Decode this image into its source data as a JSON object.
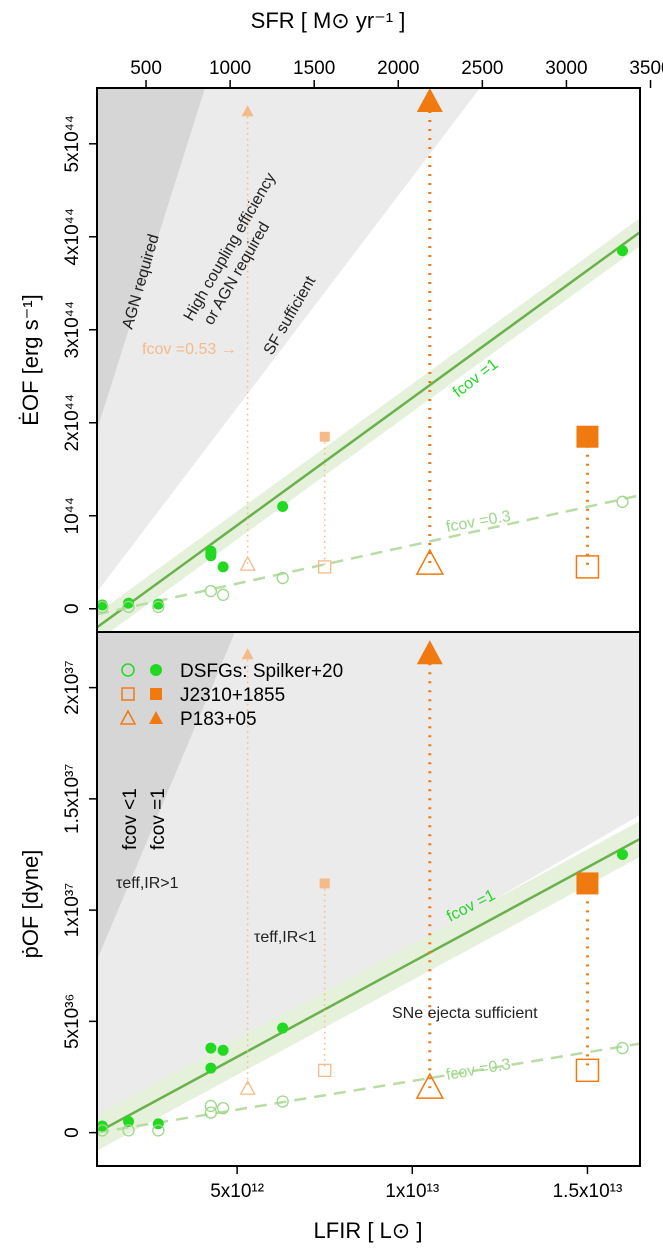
{
  "colors": {
    "green_fill": "#22d922",
    "green_line": "#6ab04c",
    "green_band": "#e6f1dc",
    "green_light": "#9bd88a",
    "orange": "#f07a10",
    "orange_light": "#f6b988",
    "region_dark": "#d6d6d6",
    "region_light": "#ebebeb"
  },
  "top_axis": {
    "label": "SFR [ M⊙ yr⁻¹ ]",
    "ticks": [
      "500",
      "1000",
      "1500",
      "2000",
      "2500",
      "3000",
      "3500"
    ],
    "tick_values": [
      500,
      1000,
      1500,
      2000,
      2500,
      3000,
      3500
    ]
  },
  "bottom_axis": {
    "label": "LFIR [ L⊙ ]",
    "ticks": [
      "5x10¹²",
      "1x10¹³",
      "1.5x10¹³"
    ],
    "tick_values": [
      5000000000000.0,
      10000000000000.0,
      15000000000000.0
    ]
  },
  "legend": {
    "rows": [
      "DSFGs: Spilker+20",
      "J2310+1855",
      "P183+05"
    ],
    "col_open": "fcov <1",
    "col_filled": "fcov =1"
  },
  "top_panel": {
    "ylabel": "ĖOF [erg s⁻¹]",
    "yticks": [
      "0",
      "10⁴⁴",
      "2x10⁴⁴",
      "3x10⁴⁴",
      "4x10⁴⁴",
      "5x10⁴⁴"
    ],
    "ann_agn": "AGN required",
    "ann_high1": "High coupling efficiency",
    "ann_high2": "or AGN required",
    "ann_sf": "SF sufficient",
    "ann_fcov053": "fcov =0.53 →",
    "line_full": "fcov =1",
    "line_partial": "fcov =0.3"
  },
  "bottom_panel": {
    "ylabel": "ṗOF [dyne]",
    "yticks": [
      "0",
      "5x10³⁶",
      "1x10³⁷",
      "1.5x10³⁷",
      "2x10³⁷"
    ],
    "ann_tau_gt": "τeff,IR>1",
    "ann_tau_lt": "τeff,IR<1",
    "ann_sne": "SNe ejecta sufficient",
    "line_full": "fcov =1",
    "line_partial": "fcov =0.3"
  },
  "chart_data": [
    {
      "type": "scatter",
      "panel": "top",
      "xlabel": "LFIR [ L⊙ ]",
      "ylabel": "ĖOF [erg s⁻¹]",
      "xlim": [
        1000000000000.0,
        16500000000000.0
      ],
      "ylim": [
        -2.5e+43,
        5.6e+44
      ],
      "series": [
        {
          "name": "DSFGs: Spilker+20",
          "marker": "filled-circle",
          "x": [
            1150000000000.0,
            1900000000000.0,
            2750000000000.0,
            4250000000000.0,
            4250000000000.0,
            4250000000000.0,
            4600000000000.0,
            6300000000000.0,
            16000000000000.0
          ],
          "y": [
            4e+42,
            6e+42,
            5e+42,
            5.7e+43,
            6.2e+43,
            6e+43,
            4.5e+43,
            1.1e+44,
            3.85e+44
          ]
        },
        {
          "name": "DSFGs: Spilker+20",
          "marker": "open-circle",
          "x": [
            1150000000000.0,
            1900000000000.0,
            2750000000000.0,
            4250000000000.0,
            4600000000000.0,
            6300000000000.0,
            16000000000000.0
          ],
          "y": [
            2e+42,
            2e+42,
            2e+42,
            1.9e+43,
            1.5e+43,
            3.3e+43,
            1.15e+44
          ]
        },
        {
          "name": "J2310+1855",
          "marker": "filled-square",
          "x": [
            15000000000000.0
          ],
          "y": [
            1.85e+44
          ]
        },
        {
          "name": "J2310+1855",
          "marker": "open-square",
          "x": [
            15000000000000.0
          ],
          "y": [
            4.5e+43
          ]
        },
        {
          "name": "P183+05",
          "marker": "filled-triangle",
          "x": [
            10500000000000.0
          ],
          "y": [
            5.45e+44
          ]
        },
        {
          "name": "P183+05",
          "marker": "open-triangle",
          "x": [
            10500000000000.0
          ],
          "y": [
            4.8e+43
          ]
        },
        {
          "name": "J2310+1855",
          "marker": "filled-square-light",
          "x": [
            7500000000000.0
          ],
          "y": [
            1.85e+44
          ]
        },
        {
          "name": "J2310+1855",
          "marker": "open-square-light",
          "x": [
            7500000000000.0
          ],
          "y": [
            4.5e+43
          ]
        },
        {
          "name": "P183+05",
          "marker": "filled-triangle-light",
          "x": [
            5300000000000.0
          ],
          "y": [
            5.35e+44
          ]
        },
        {
          "name": "P183+05",
          "marker": "open-triangle-light",
          "x": [
            5300000000000.0
          ],
          "y": [
            4.8e+43
          ]
        }
      ],
      "lines": [
        {
          "name": "fcov =1",
          "x": [
            1000000000000.0,
            16500000000000.0
          ],
          "y": [
            -2e+43,
            4.05e+44
          ]
        },
        {
          "name": "fcov =0.3",
          "x": [
            1000000000000.0,
            16500000000000.0
          ],
          "y": [
            -6e+42,
            1.22e+44
          ]
        }
      ]
    },
    {
      "type": "scatter",
      "panel": "bottom",
      "xlabel": "LFIR [ L⊙ ]",
      "ylabel": "ṗOF [dyne]",
      "xlim": [
        1000000000000.0,
        16500000000000.0
      ],
      "ylim": [
        -1.5e+36,
        2.25e+37
      ],
      "series": [
        {
          "name": "DSFGs: Spilker+20",
          "marker": "filled-circle",
          "x": [
            1150000000000.0,
            1900000000000.0,
            2750000000000.0,
            4250000000000.0,
            4250000000000.0,
            4600000000000.0,
            6300000000000.0,
            16000000000000.0
          ],
          "y": [
            3e+35,
            5e+35,
            4e+35,
            3.8e+36,
            2.9e+36,
            3.7e+36,
            4.7e+36,
            1.25e+37
          ]
        },
        {
          "name": "DSFGs: Spilker+20",
          "marker": "open-circle",
          "x": [
            1150000000000.0,
            1900000000000.0,
            2750000000000.0,
            4250000000000.0,
            4250000000000.0,
            4600000000000.0,
            6300000000000.0,
            16000000000000.0
          ],
          "y": [
            1e+35,
            1e+35,
            1e+35,
            1.2e+36,
            9e+35,
            1.1e+36,
            1.4e+36,
            3.8e+36
          ]
        },
        {
          "name": "J2310+1855",
          "marker": "filled-square",
          "x": [
            15000000000000.0
          ],
          "y": [
            1.12e+37
          ]
        },
        {
          "name": "J2310+1855",
          "marker": "open-square",
          "x": [
            15000000000000.0
          ],
          "y": [
            2.8e+36
          ]
        },
        {
          "name": "P183+05",
          "marker": "filled-triangle",
          "x": [
            10500000000000.0
          ],
          "y": [
            2.15e+37
          ]
        },
        {
          "name": "P183+05",
          "marker": "open-triangle",
          "x": [
            10500000000000.0
          ],
          "y": [
            2e+36
          ]
        },
        {
          "name": "J2310+1855",
          "marker": "filled-square-light",
          "x": [
            7500000000000.0
          ],
          "y": [
            1.12e+37
          ]
        },
        {
          "name": "J2310+1855",
          "marker": "open-square-light",
          "x": [
            7500000000000.0
          ],
          "y": [
            2.8e+36
          ]
        },
        {
          "name": "P183+05",
          "marker": "filled-triangle-light",
          "x": [
            5300000000000.0
          ],
          "y": [
            2.15e+37
          ]
        },
        {
          "name": "P183+05",
          "marker": "open-triangle-light",
          "x": [
            5300000000000.0
          ],
          "y": [
            2e+36
          ]
        }
      ],
      "lines": [
        {
          "name": "fcov =1",
          "x": [
            1000000000000.0,
            16500000000000.0
          ],
          "y": [
            0.0,
            1.32e+37
          ]
        },
        {
          "name": "fcov =0.3",
          "x": [
            1000000000000.0,
            16500000000000.0
          ],
          "y": [
            0.0,
            4e+36
          ]
        }
      ]
    }
  ]
}
